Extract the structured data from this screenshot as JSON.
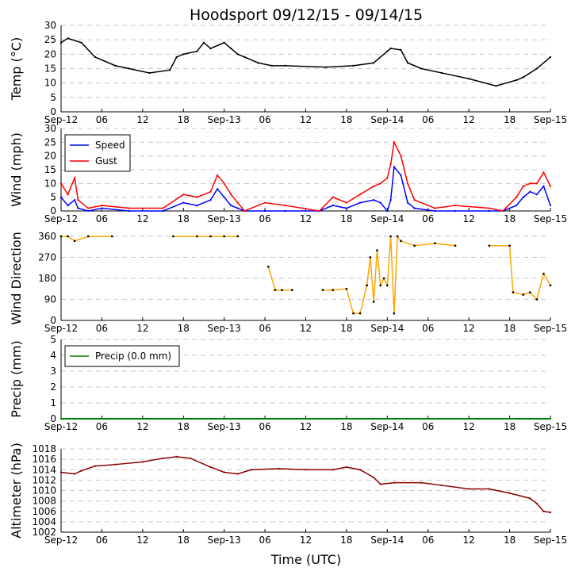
{
  "title": "Hoodsport 09/12/15 - 09/14/15",
  "xlabel": "Time (UTC)",
  "x_ticks": [
    "Sep-12",
    "06",
    "12",
    "18",
    "Sep-13",
    "06",
    "12",
    "18",
    "Sep-14",
    "06",
    "12",
    "18",
    "Sep-15"
  ],
  "colors": {
    "temp": "#000000",
    "speed": "#0000ff",
    "gust": "#ff0000",
    "dir_line": "#ffa500",
    "dir_pt": "#000000",
    "precip": "#008000",
    "pressure": "#8b0000"
  },
  "chart_data": [
    {
      "type": "line",
      "id": "temp",
      "ylabel": "Temp ($^\\circ$C)",
      "ylabel_text": "Temp (°C)",
      "ylim": [
        0,
        30
      ],
      "y_ticks": [
        "0",
        "5",
        "10",
        "15",
        "20",
        "25",
        "30"
      ],
      "x_hours": [
        0,
        1,
        3,
        5,
        8,
        10,
        13,
        16,
        17,
        18,
        20,
        21,
        22,
        24,
        25,
        26,
        27,
        29,
        31,
        33,
        39,
        43,
        46,
        48,
        48.5,
        50,
        51,
        53,
        56,
        60,
        64,
        67,
        68,
        70,
        72
      ],
      "series": [
        {
          "name": "Temp",
          "values": [
            24,
            25.5,
            24,
            19,
            16,
            15,
            13.5,
            14.5,
            19,
            20,
            21,
            24,
            22,
            24,
            22,
            20,
            19,
            17,
            16,
            16,
            15.5,
            16,
            17,
            21,
            22,
            21.5,
            17,
            15,
            13.5,
            11.5,
            9,
            11,
            12,
            15,
            19
          ]
        }
      ]
    },
    {
      "type": "line",
      "id": "wind",
      "ylabel": "Wind (mph)",
      "ylim": [
        0,
        30
      ],
      "y_ticks": [
        "0",
        "5",
        "10",
        "15",
        "20",
        "25",
        "30"
      ],
      "legend": [
        "Speed",
        "Gust"
      ],
      "x_hours": [
        0,
        1,
        2,
        2.5,
        4,
        6,
        10,
        15,
        18,
        20,
        22,
        23,
        24,
        25,
        26,
        27,
        30,
        33,
        38,
        40,
        42,
        44,
        46,
        47,
        48,
        48.5,
        49,
        50,
        51,
        52,
        55,
        58,
        63,
        65,
        67,
        68,
        69,
        70,
        71,
        72
      ],
      "series": [
        {
          "name": "Speed",
          "values": [
            5,
            2,
            4,
            1,
            0,
            1,
            0,
            0,
            3,
            2,
            4,
            8,
            5,
            2,
            1,
            0,
            0,
            0,
            0,
            2,
            1,
            3,
            4,
            3,
            0,
            4,
            16,
            13,
            3,
            1,
            0,
            0,
            0,
            0,
            2,
            5,
            7,
            6,
            9,
            2
          ]
        },
        {
          "name": "Gust",
          "values": [
            10,
            6,
            12,
            4,
            1,
            2,
            1,
            1,
            6,
            5,
            7,
            13,
            10,
            6,
            3,
            0,
            3,
            2,
            0,
            5,
            3,
            6,
            9,
            10,
            12,
            17,
            25,
            20,
            10,
            4,
            1,
            2,
            1,
            0,
            5,
            9,
            10,
            10,
            14,
            9
          ]
        }
      ]
    },
    {
      "type": "scatter",
      "id": "dir",
      "ylabel": "Wind Direction",
      "ylim": [
        0,
        360
      ],
      "y_ticks": [
        "0",
        "90",
        "180",
        "270",
        "360"
      ],
      "x_hours": [
        0,
        1,
        2,
        4,
        7.5,
        16.5,
        20,
        22,
        24,
        26,
        30.5,
        31.5,
        32.5,
        34,
        38.5,
        40,
        42,
        43,
        44,
        45,
        45.5,
        46,
        46.5,
        47,
        47.5,
        48,
        48.5,
        49,
        49.5,
        50,
        52,
        55,
        58,
        63,
        66,
        66.5,
        68,
        69,
        70,
        71,
        72
      ],
      "series": [
        {
          "name": "Direction",
          "values": [
            360,
            360,
            340,
            360,
            360,
            360,
            360,
            360,
            360,
            360,
            230,
            130,
            130,
            130,
            130,
            130,
            135,
            30,
            30,
            150,
            270,
            80,
            300,
            150,
            180,
            150,
            360,
            30,
            360,
            340,
            320,
            330,
            320,
            320,
            320,
            120,
            110,
            120,
            90,
            200,
            150
          ]
        }
      ]
    },
    {
      "type": "line",
      "id": "precip",
      "ylabel": "Precip (mm)",
      "ylim": [
        0,
        5
      ],
      "y_ticks": [
        "0",
        "1",
        "2",
        "3",
        "4",
        "5"
      ],
      "legend": [
        "Precip (0.0 mm)"
      ],
      "x_hours": [
        0,
        72
      ],
      "series": [
        {
          "name": "Precip",
          "values": [
            0,
            0
          ]
        }
      ]
    },
    {
      "type": "line",
      "id": "alt",
      "ylabel": "Altimeter (hPa)",
      "ylim": [
        1002,
        1018
      ],
      "y_ticks": [
        "1002",
        "1004",
        "1006",
        "1008",
        "1010",
        "1012",
        "1014",
        "1016",
        "1018"
      ],
      "x_hours": [
        0,
        2,
        3,
        5,
        8,
        12,
        15,
        17,
        19,
        22,
        24,
        26,
        28,
        32,
        36,
        40,
        42,
        44,
        46,
        47,
        49,
        53,
        56,
        60,
        63,
        66,
        69,
        70,
        71,
        72
      ],
      "series": [
        {
          "name": "Altimeter",
          "values": [
            1013.5,
            1013.2,
            1013.8,
            1014.7,
            1015,
            1015.5,
            1016.2,
            1016.5,
            1016.2,
            1014.5,
            1013.5,
            1013.2,
            1014,
            1014.2,
            1014,
            1014,
            1014.5,
            1014,
            1012.5,
            1011.2,
            1011.5,
            1011.5,
            1011,
            1010.3,
            1010.3,
            1009.5,
            1008.5,
            1007.5,
            1006,
            1005.8
          ]
        }
      ]
    }
  ]
}
